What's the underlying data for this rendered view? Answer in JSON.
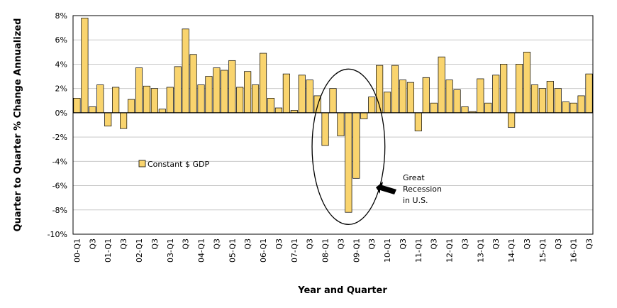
{
  "chart_data": {
    "type": "bar",
    "xlabel": "Year and Quarter",
    "ylabel": "Quarter to Quarter % Change Annualized",
    "ylim": [
      -10,
      8
    ],
    "yticks": [
      8,
      6,
      4,
      2,
      0,
      -2,
      -4,
      -6,
      -8,
      -10
    ],
    "ytick_labels": [
      "8%",
      "6%",
      "4%",
      "2%",
      "0%",
      "-2%",
      "-4%",
      "-6%",
      "-8%",
      "-10%"
    ],
    "grid": "horizontal",
    "legend_position": "left-middle",
    "bar_color": "#F9D46E",
    "bar_edge_color": "#000000",
    "series": [
      {
        "name": "Constant $ GDP",
        "values": [
          1.2,
          7.8,
          0.5,
          2.3,
          -1.1,
          2.1,
          -1.3,
          1.1,
          3.7,
          2.2,
          2.0,
          0.3,
          2.1,
          3.8,
          6.9,
          4.8,
          2.3,
          3.0,
          3.7,
          3.5,
          4.3,
          2.1,
          3.4,
          2.3,
          4.9,
          1.2,
          0.4,
          3.2,
          0.2,
          3.1,
          2.7,
          1.4,
          -2.7,
          2.0,
          -1.9,
          -8.2,
          -5.4,
          -0.5,
          1.3,
          3.9,
          1.7,
          3.9,
          2.7,
          2.5,
          -1.5,
          2.9,
          0.8,
          4.6,
          2.7,
          1.9,
          0.5,
          0.1,
          2.8,
          0.8,
          3.1,
          4.0,
          -1.2,
          4.0,
          5.0,
          2.3,
          2.0,
          2.6,
          2.0,
          0.9,
          0.8,
          1.4,
          3.2
        ]
      }
    ],
    "category_labels": [
      {
        "index": 0,
        "label": "00-Q1"
      },
      {
        "index": 2,
        "label": "Q3"
      },
      {
        "index": 4,
        "label": "01-Q1"
      },
      {
        "index": 6,
        "label": "Q3"
      },
      {
        "index": 8,
        "label": "02-Q1"
      },
      {
        "index": 10,
        "label": "Q3"
      },
      {
        "index": 12,
        "label": "03-Q1"
      },
      {
        "index": 14,
        "label": "Q3"
      },
      {
        "index": 16,
        "label": "04-Q1"
      },
      {
        "index": 18,
        "label": "Q3"
      },
      {
        "index": 20,
        "label": "05-Q1"
      },
      {
        "index": 22,
        "label": "Q3"
      },
      {
        "index": 24,
        "label": "06-Q1"
      },
      {
        "index": 26,
        "label": "Q3"
      },
      {
        "index": 28,
        "label": "07-Q1"
      },
      {
        "index": 30,
        "label": "Q3"
      },
      {
        "index": 32,
        "label": "08-Q1"
      },
      {
        "index": 34,
        "label": "Q3"
      },
      {
        "index": 36,
        "label": "09-Q1"
      },
      {
        "index": 38,
        "label": "Q3"
      },
      {
        "index": 40,
        "label": "10-Q1"
      },
      {
        "index": 42,
        "label": "Q3"
      },
      {
        "index": 44,
        "label": "11-Q1"
      },
      {
        "index": 46,
        "label": "Q3"
      },
      {
        "index": 48,
        "label": "12-Q1"
      },
      {
        "index": 50,
        "label": "Q3"
      },
      {
        "index": 52,
        "label": "13-Q1"
      },
      {
        "index": 54,
        "label": "Q3"
      },
      {
        "index": 56,
        "label": "14-Q1"
      },
      {
        "index": 58,
        "label": "Q3"
      },
      {
        "index": 60,
        "label": "15-Q1"
      },
      {
        "index": 62,
        "label": "Q3"
      },
      {
        "index": 64,
        "label": "16-Q1"
      },
      {
        "index": 66,
        "label": "Q3"
      }
    ],
    "annotation": {
      "lines": [
        "Great",
        "Recession",
        "in U.S."
      ],
      "highlight_range": [
        33,
        37
      ],
      "highlight_y": [
        -9.2,
        3.6
      ]
    }
  }
}
